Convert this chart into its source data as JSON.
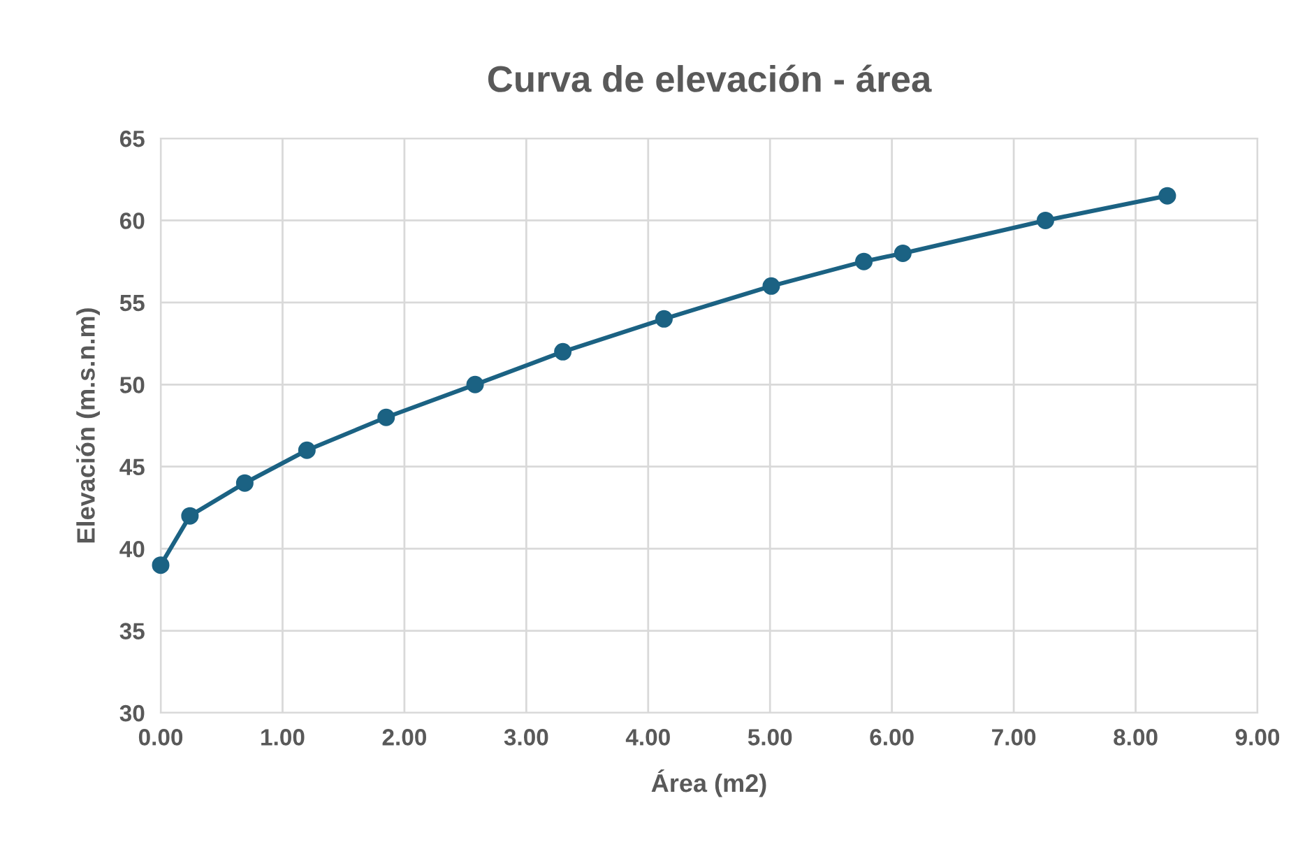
{
  "chart_data": {
    "type": "line",
    "title": "Curva de elevación - área",
    "xlabel": "Área (m2)",
    "ylabel": "Elevación (m.s.n.m)",
    "x": [
      0,
      0.24,
      0.69,
      1.2,
      1.85,
      2.58,
      3.3,
      4.13,
      5.01,
      5.77,
      6.09,
      7.26,
      8.26
    ],
    "series": [
      {
        "color": "#1b6283",
        "values": [
          39,
          42,
          44,
          46,
          48,
          50,
          52,
          54,
          56,
          57.5,
          58,
          60,
          61.5
        ]
      }
    ],
    "xlim": [
      0,
      9
    ],
    "xticks": [
      {
        "value": 0,
        "label": "0.00"
      },
      {
        "value": 1,
        "label": "1.00"
      },
      {
        "value": 2,
        "label": "2.00"
      },
      {
        "value": 3,
        "label": "3.00"
      },
      {
        "value": 4,
        "label": "4.00"
      },
      {
        "value": 5,
        "label": "5.00"
      },
      {
        "value": 6,
        "label": "6.00"
      },
      {
        "value": 7,
        "label": "7.00"
      },
      {
        "value": 8,
        "label": "8.00"
      },
      {
        "value": 9,
        "label": "9.00"
      }
    ],
    "ylim": [
      30,
      65
    ],
    "yticks": [
      30,
      35,
      40,
      45,
      50,
      55,
      60,
      65
    ],
    "grid": true,
    "marker": "circle",
    "line_style": "solid"
  }
}
